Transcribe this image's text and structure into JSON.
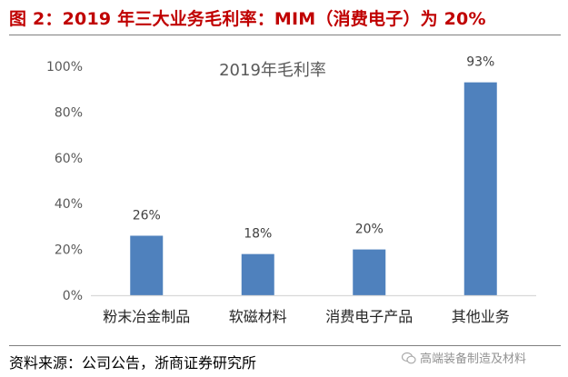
{
  "figure": {
    "title": "图 2：2019 年三大业务毛利率：MIM（消费电子）为 20%",
    "source": "资料来源：公司公告，浙商证券研究所",
    "watermark": "高端装备制造及材料"
  },
  "colors": {
    "title": "#c00000",
    "bar": "#4f81bd",
    "axis": "#d9d9d9"
  },
  "chart_data": {
    "type": "bar",
    "title": "2019年毛利率",
    "categories": [
      "粉末冶金制品",
      "软磁材料",
      "消费电子产品",
      "其他业务"
    ],
    "values": [
      26,
      18,
      20,
      93
    ],
    "data_labels": [
      "26%",
      "18%",
      "20%",
      "93%"
    ],
    "ylim": [
      0,
      100
    ],
    "yticks": [
      0,
      20,
      40,
      60,
      80,
      100
    ],
    "ytick_labels": [
      "0%",
      "20%",
      "40%",
      "60%",
      "80%",
      "100%"
    ],
    "xlabel": "",
    "ylabel": "",
    "grid": false,
    "legend": "none"
  }
}
